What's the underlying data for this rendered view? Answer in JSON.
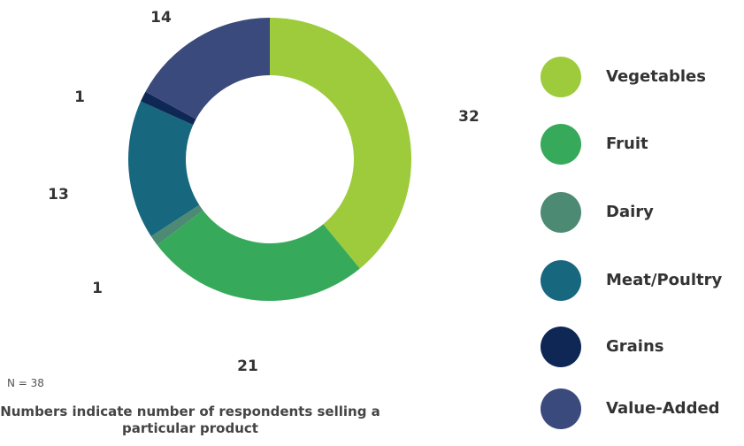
{
  "chart_data": {
    "type": "donut",
    "categories": [
      "Vegetables",
      "Fruit",
      "Dairy",
      "Meat/Poultry",
      "Grains",
      "Value-Added"
    ],
    "values": [
      32,
      21,
      1,
      13,
      1,
      14
    ],
    "colors": [
      "#9dcb3b",
      "#37a95a",
      "#4d8a74",
      "#17677f",
      "#0e2755",
      "#3b4a7c"
    ],
    "sample_size": "N = 38",
    "note": "Numbers indicate number of respondents selling a particular product"
  }
}
